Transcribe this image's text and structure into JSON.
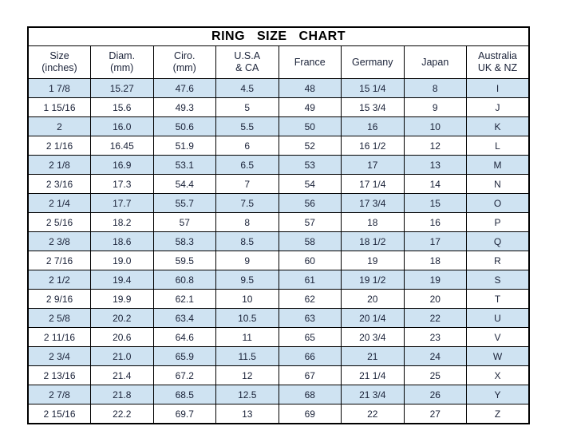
{
  "chart_data": {
    "type": "table",
    "title": "RING SIZE CHART",
    "columns": [
      {
        "label": "Size",
        "sub": "(inches)"
      },
      {
        "label": "Diam.",
        "sub": "(mm)"
      },
      {
        "label": "Ciro.",
        "sub": "(mm)"
      },
      {
        "label": "U.S.A",
        "sub": "& CA"
      },
      {
        "label": "France",
        "sub": ""
      },
      {
        "label": "Germany",
        "sub": ""
      },
      {
        "label": "Japan",
        "sub": ""
      },
      {
        "label": "Australia",
        "sub": "UK & NZ"
      }
    ],
    "rows": [
      [
        "1 7/8",
        "15.27",
        "47.6",
        "4.5",
        "48",
        "15 1/4",
        "8",
        "I"
      ],
      [
        "1 15/16",
        "15.6",
        "49.3",
        "5",
        "49",
        "15 3/4",
        "9",
        "J"
      ],
      [
        "2",
        "16.0",
        "50.6",
        "5.5",
        "50",
        "16",
        "10",
        "K"
      ],
      [
        "2 1/16",
        "16.45",
        "51.9",
        "6",
        "52",
        "16 1/2",
        "12",
        "L"
      ],
      [
        "2 1/8",
        "16.9",
        "53.1",
        "6.5",
        "53",
        "17",
        "13",
        "M"
      ],
      [
        "2 3/16",
        "17.3",
        "54.4",
        "7",
        "54",
        "17 1/4",
        "14",
        "N"
      ],
      [
        "2 1/4",
        "17.7",
        "55.7",
        "7.5",
        "56",
        "17 3/4",
        "15",
        "O"
      ],
      [
        "2 5/16",
        "18.2",
        "57",
        "8",
        "57",
        "18",
        "16",
        "P"
      ],
      [
        "2 3/8",
        "18.6",
        "58.3",
        "8.5",
        "58",
        "18 1/2",
        "17",
        "Q"
      ],
      [
        "2 7/16",
        "19.0",
        "59.5",
        "9",
        "60",
        "19",
        "18",
        "R"
      ],
      [
        "2 1/2",
        "19.4",
        "60.8",
        "9.5",
        "61",
        "19 1/2",
        "19",
        "S"
      ],
      [
        "2 9/16",
        "19.9",
        "62.1",
        "10",
        "62",
        "20",
        "20",
        "T"
      ],
      [
        "2 5/8",
        "20.2",
        "63.4",
        "10.5",
        "63",
        "20 1/4",
        "22",
        "U"
      ],
      [
        "2 11/16",
        "20.6",
        "64.6",
        "11",
        "65",
        "20 3/4",
        "23",
        "V"
      ],
      [
        "2 3/4",
        "21.0",
        "65.9",
        "11.5",
        "66",
        "21",
        "24",
        "W"
      ],
      [
        "2 13/16",
        "21.4",
        "67.2",
        "12",
        "67",
        "21 1/4",
        "25",
        "X"
      ],
      [
        "2 7/8",
        "21.8",
        "68.5",
        "12.5",
        "68",
        "21 3/4",
        "26",
        "Y"
      ],
      [
        "2 15/16",
        "22.2",
        "69.7",
        "13",
        "69",
        "22",
        "27",
        "Z"
      ]
    ],
    "layout": {
      "striping": "odd rows highlighted, starting with first data row",
      "grid": "on",
      "border": "solid black outer and inner lines"
    }
  },
  "colors": {
    "row_highlight": "#cfe3f2",
    "row_plain": "#ffffff",
    "border": "#000000",
    "text": "#1a2238",
    "title_text": "#000000"
  }
}
